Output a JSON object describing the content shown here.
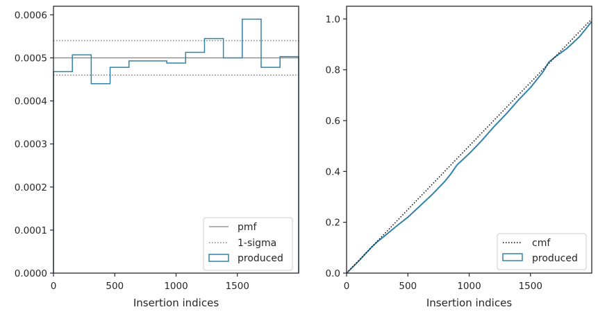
{
  "colors": {
    "produced": "#3182ab",
    "pmf": "#808080",
    "sigma": "#808080",
    "cmf": "#000000",
    "axes": "#262626"
  },
  "chart_data": [
    {
      "type": "step",
      "xlabel": "Insertion indices",
      "ylabel": "",
      "xlim": [
        0,
        2000
      ],
      "ylim": [
        0,
        0.00062
      ],
      "xticks": [
        0,
        500,
        1000,
        1500
      ],
      "xtick_labels": [
        "0",
        "500",
        "1000",
        "1500"
      ],
      "yticks": [
        0,
        0.0001,
        0.0002,
        0.0003,
        0.0004,
        0.0005,
        0.0006
      ],
      "ytick_labels": [
        "0.0000",
        "0.0001",
        "0.0002",
        "0.0003",
        "0.0004",
        "0.0005",
        "0.0006"
      ],
      "pmf": 0.0005,
      "sigma_band": [
        0.00046,
        0.00054
      ],
      "bin_edges": [
        0,
        154,
        308,
        462,
        616,
        770,
        924,
        1078,
        1232,
        1386,
        1540,
        1694,
        1848,
        2000
      ],
      "produced": [
        0.000468,
        0.000507,
        0.00044,
        0.000478,
        0.000493,
        0.000493,
        0.000488,
        0.000513,
        0.000545,
        0.0005,
        0.00059,
        0.000478,
        0.000503
      ],
      "legend": {
        "position": "lower-right",
        "entries": [
          "pmf",
          "1-sigma",
          "produced"
        ]
      }
    },
    {
      "type": "line",
      "xlabel": "Insertion indices",
      "ylabel": "",
      "xlim": [
        0,
        2000
      ],
      "ylim": [
        0,
        1.05
      ],
      "xticks": [
        0,
        500,
        1000,
        1500
      ],
      "xtick_labels": [
        "0",
        "500",
        "1000",
        "1500"
      ],
      "yticks": [
        0,
        0.2,
        0.4,
        0.6,
        0.8,
        1.0
      ],
      "ytick_labels": [
        "0.0",
        "0.2",
        "0.4",
        "0.6",
        "0.8",
        "1.0"
      ],
      "cmf": {
        "x": [
          0,
          2000
        ],
        "y": [
          0,
          1.0
        ]
      },
      "produced": {
        "x": [
          0,
          100,
          200,
          250,
          300,
          400,
          500,
          600,
          700,
          800,
          850,
          900,
          1000,
          1100,
          1200,
          1300,
          1400,
          1500,
          1600,
          1650,
          1700,
          1800,
          1900,
          2000
        ],
        "y": [
          0,
          0.048,
          0.1,
          0.123,
          0.142,
          0.182,
          0.22,
          0.265,
          0.31,
          0.36,
          0.39,
          0.425,
          0.47,
          0.52,
          0.575,
          0.625,
          0.68,
          0.73,
          0.79,
          0.83,
          0.85,
          0.885,
          0.93,
          0.99
        ]
      },
      "legend": {
        "position": "lower-right",
        "entries": [
          "cmf",
          "produced"
        ]
      }
    }
  ]
}
